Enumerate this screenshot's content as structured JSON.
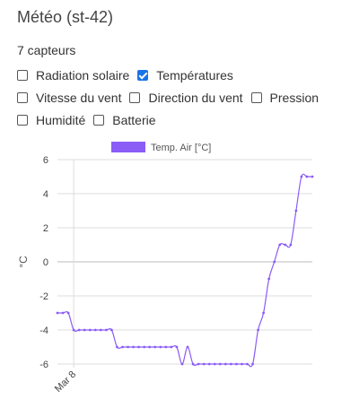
{
  "header": {
    "title": "Météo (st-42)",
    "sensor_count": "7 capteurs"
  },
  "sensors": {
    "rows": [
      [
        {
          "label": "Radiation solaire",
          "checked": false
        },
        {
          "label": "Températures",
          "checked": true
        }
      ],
      [
        {
          "label": "Vitesse du vent",
          "checked": false
        },
        {
          "label": "Direction du vent",
          "checked": false
        },
        {
          "label": "Pression",
          "checked": false
        }
      ],
      [
        {
          "label": "Humidité",
          "checked": false
        },
        {
          "label": "Batterie",
          "checked": false
        }
      ]
    ]
  },
  "colors": {
    "series": "#8b5cf6",
    "grid": "#dddddd",
    "checkbox_checked": "#1a73e8"
  },
  "chart_data": {
    "type": "line",
    "ylabel": "°C",
    "xlabel": "",
    "ylim": [
      -6,
      6
    ],
    "yticks": [
      6,
      4,
      2,
      0,
      -2,
      -4,
      -6
    ],
    "xticks": [
      {
        "label": "Mar 8",
        "x": 3
      }
    ],
    "legend": {
      "position": "top",
      "entries": [
        "Temp. Air [°C]"
      ]
    },
    "grid": true,
    "series": [
      {
        "name": "Temp. Air [°C]",
        "x": [
          0,
          1,
          2,
          3,
          4,
          5,
          6,
          7,
          8,
          9,
          10,
          11,
          12,
          13,
          14,
          15,
          16,
          17,
          18,
          19,
          20,
          21,
          22,
          23,
          24,
          25,
          26,
          27,
          28,
          29,
          30,
          31,
          32,
          33,
          34,
          35,
          36,
          37,
          38,
          39,
          40,
          41,
          42,
          43,
          44,
          45,
          46,
          47
        ],
        "y": [
          -3,
          -3,
          -3,
          -4,
          -4,
          -4,
          -4,
          -4,
          -4,
          -4,
          -4,
          -5,
          -5,
          -5,
          -5,
          -5,
          -5,
          -5,
          -5,
          -5,
          -5,
          -5,
          -5,
          -6,
          -5,
          -6,
          -6,
          -6,
          -6,
          -6,
          -6,
          -6,
          -6,
          -6,
          -6,
          -6,
          -6,
          -4,
          -3,
          -1,
          0,
          1,
          1,
          1,
          3,
          5,
          5,
          5
        ]
      }
    ]
  }
}
